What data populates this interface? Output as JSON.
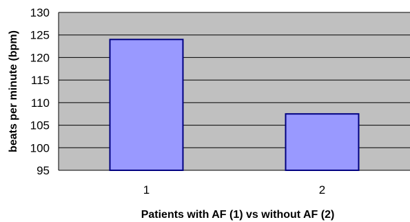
{
  "chart_data": {
    "type": "bar",
    "title": "",
    "xlabel": "Patients with AF (1) vs without AF (2)",
    "ylabel": "beats per minute (bpm)",
    "ylim": [
      95,
      130
    ],
    "yticks": [
      95,
      100,
      105,
      110,
      115,
      120,
      125,
      130
    ],
    "categories": [
      "1",
      "2"
    ],
    "values": [
      124,
      107.5
    ],
    "grid": true,
    "legend": "none",
    "colors": {
      "plot_background": "#c0c0c0",
      "bar_fill": "#9999ff",
      "bar_stroke": "#000080",
      "gridline": "#000000"
    }
  }
}
